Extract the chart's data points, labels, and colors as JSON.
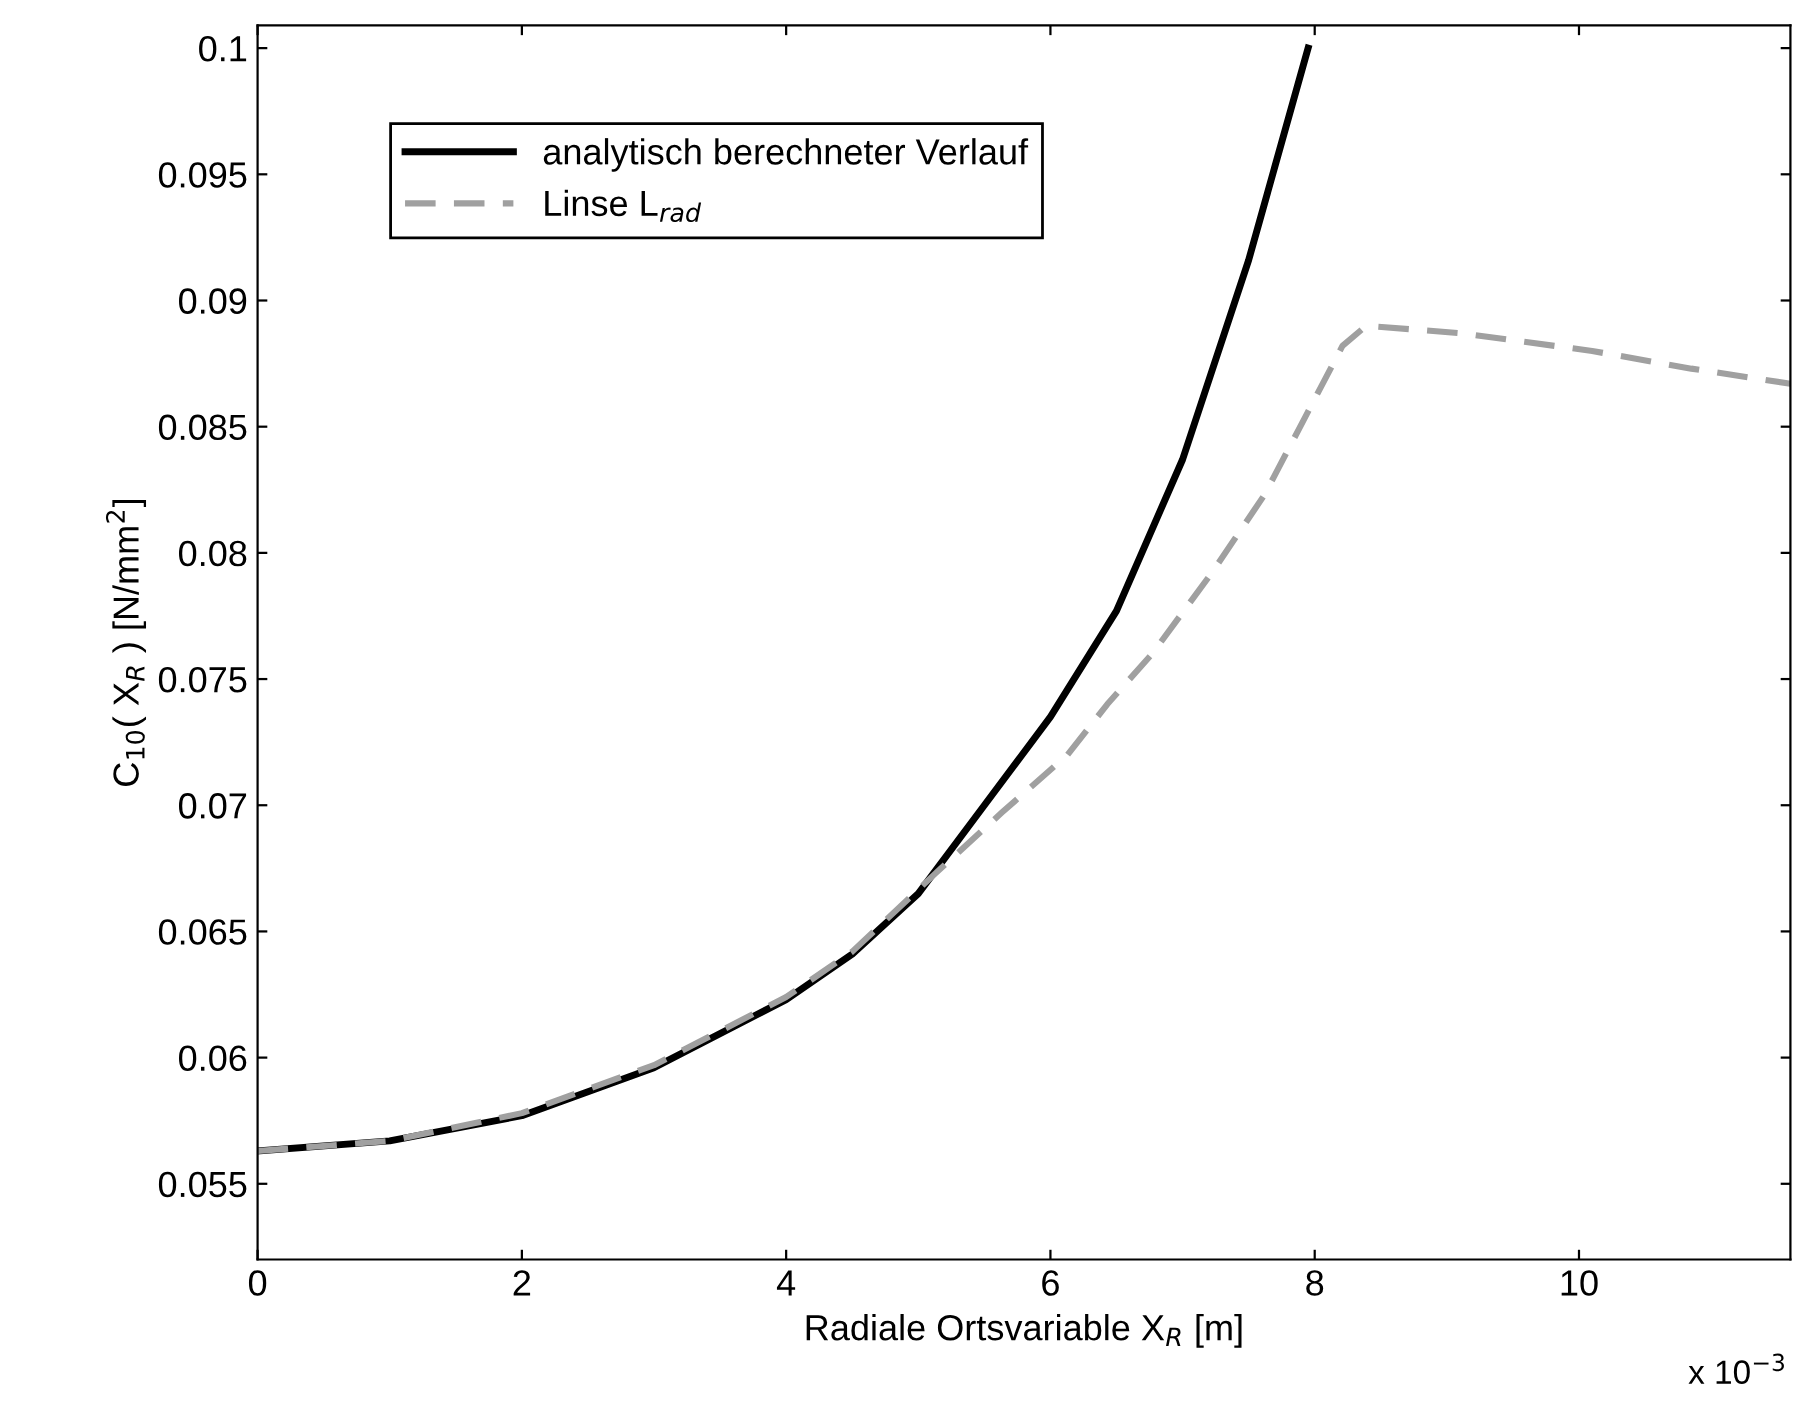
{
  "chart_data": {
    "type": "line",
    "xlabel": "Radiale Ortsvariable X$_{R}$ [m]",
    "ylabel": "C$_{10}$( X$_{R}$ ) [N/mm$^{2}$]",
    "xlim": [
      0,
      11.6
    ],
    "ylim": [
      0.052,
      0.1009
    ],
    "xticks": [
      0,
      2,
      4,
      6,
      8,
      10
    ],
    "yticks": [
      0.055,
      0.06,
      0.065,
      0.07,
      0.075,
      0.08,
      0.085,
      0.09,
      0.095,
      0.1
    ],
    "series": [
      {
        "name": "analytisch berechneter Verlauf",
        "color": "#000000",
        "line_style": "solid",
        "x": [
          0,
          1,
          2,
          3,
          4,
          4.5,
          5,
          5.5,
          6,
          6.5,
          7,
          7.5,
          7.95
        ],
        "values": [
          0.0563,
          0.0567,
          0.0577,
          0.0596,
          0.0623,
          0.0641,
          0.0665,
          0.07,
          0.0735,
          0.0777,
          0.0837,
          0.0916,
          0.1
        ]
      },
      {
        "name": "Linse L$_{rad}$",
        "color": "#a0a0a0",
        "line_style": "dashed",
        "x": [
          0,
          1,
          2,
          3,
          4,
          4.5,
          5.13,
          5.63,
          6.13,
          6.43,
          6.77,
          7.22,
          7.62,
          7.92,
          8.21,
          8.39,
          9.11,
          10.1,
          10.85,
          11.6
        ],
        "values": [
          0.0563,
          0.0567,
          0.0578,
          0.0597,
          0.0624,
          0.0642,
          0.0673,
          0.0697,
          0.072,
          0.074,
          0.076,
          0.0792,
          0.0823,
          0.0853,
          0.0882,
          0.089,
          0.0887,
          0.088,
          0.0873,
          0.0867
        ]
      }
    ],
    "legend": "top left",
    "grid": false,
    "annotations": [
      "x 10$^{−3}$"
    ]
  }
}
